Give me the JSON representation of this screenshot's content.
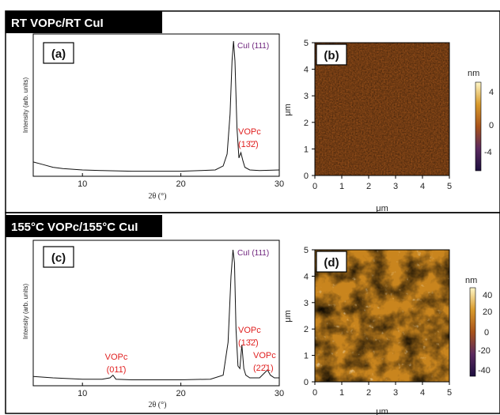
{
  "figure": {
    "top_row_title": "RT VOPc/RT CuI",
    "bottom_row_title": "155°C VOPc/155°C CuI"
  },
  "panel_a": {
    "label": "(a)",
    "ylabel": "Intensity (arb. units)",
    "xlabel": "2θ (°)",
    "xticks": [
      "10",
      "20",
      "30"
    ],
    "peak_main": "CuI (111)",
    "peak2_name": "VOPc",
    "peak2_index": "(13̄2̄)"
  },
  "panel_b": {
    "label": "(b)",
    "yticks": [
      "0",
      "1",
      "2",
      "3",
      "4",
      "5"
    ],
    "xticks": [
      "0",
      "1",
      "2",
      "3",
      "4",
      "5"
    ],
    "xlabel": "μm",
    "ylabel": "μm",
    "cbar_unit": "nm",
    "cbar_ticks": [
      "4",
      "0",
      "-4"
    ]
  },
  "panel_c": {
    "label": "(c)",
    "ylabel": "Intensity (arb. units)",
    "xlabel": "2θ (°)",
    "xticks": [
      "10",
      "20",
      "30"
    ],
    "peak_main": "CuI (111)",
    "peak1_name": "VOPc",
    "peak1_index": "(011̄)",
    "peak2_name": "VOPc",
    "peak2_index": "(13̄2̄)",
    "peak3_name": "VOPc",
    "peak3_index": "(22̄1)"
  },
  "panel_d": {
    "label": "(d)",
    "yticks": [
      "0",
      "1",
      "2",
      "3",
      "4",
      "5"
    ],
    "xticks": [
      "0",
      "1",
      "2",
      "3",
      "4",
      "5"
    ],
    "xlabel": "μm",
    "ylabel": "μm",
    "cbar_unit": "nm",
    "cbar_ticks": [
      "40",
      "20",
      "0",
      "-20",
      "-40"
    ]
  },
  "chart_data": [
    {
      "type": "line",
      "panel": "a",
      "xlabel": "2θ (°)",
      "ylabel": "Intensity (arb. units)",
      "xlim": [
        5,
        30
      ],
      "x": [
        5,
        6,
        7,
        8,
        10,
        12,
        15,
        18,
        20,
        22,
        23.5,
        24.3,
        24.7,
        25.0,
        25.2,
        25.35,
        25.5,
        25.7,
        25.9,
        26.1,
        26.3,
        26.5,
        27,
        28,
        30
      ],
      "y": [
        0.09,
        0.07,
        0.05,
        0.04,
        0.03,
        0.025,
        0.02,
        0.02,
        0.02,
        0.025,
        0.03,
        0.06,
        0.15,
        0.45,
        0.85,
        1.0,
        0.85,
        0.35,
        0.12,
        0.16,
        0.1,
        0.05,
        0.03,
        0.025,
        0.03
      ]
    },
    {
      "type": "line",
      "panel": "c",
      "xlabel": "2θ (°)",
      "ylabel": "Intensity (arb. units)",
      "xlim": [
        5,
        30
      ],
      "x": [
        5,
        7,
        10,
        12,
        12.8,
        13.1,
        13.4,
        15,
        20,
        23,
        24.3,
        24.8,
        25.1,
        25.3,
        25.45,
        25.6,
        25.8,
        26.0,
        26.2,
        26.4,
        26.6,
        27,
        28,
        28.4,
        28.8,
        29.1,
        29.5,
        30
      ],
      "y": [
        0.04,
        0.03,
        0.02,
        0.02,
        0.03,
        0.05,
        0.02,
        0.015,
        0.015,
        0.02,
        0.05,
        0.3,
        0.8,
        1.0,
        0.9,
        0.4,
        0.12,
        0.1,
        0.28,
        0.1,
        0.05,
        0.03,
        0.03,
        0.06,
        0.09,
        0.05,
        0.03,
        0.03
      ]
    },
    {
      "type": "heatmap",
      "panel": "b",
      "xlabel": "μm",
      "ylabel": "μm",
      "xlim": [
        0,
        5
      ],
      "ylim": [
        0,
        5
      ],
      "colorbar_unit": "nm",
      "colorbar_range": [
        -6,
        6
      ]
    },
    {
      "type": "heatmap",
      "panel": "d",
      "xlabel": "μm",
      "ylabel": "μm",
      "xlim": [
        0,
        5
      ],
      "ylim": [
        0,
        5
      ],
      "colorbar_unit": "nm",
      "colorbar_range": [
        -45,
        45
      ]
    }
  ]
}
